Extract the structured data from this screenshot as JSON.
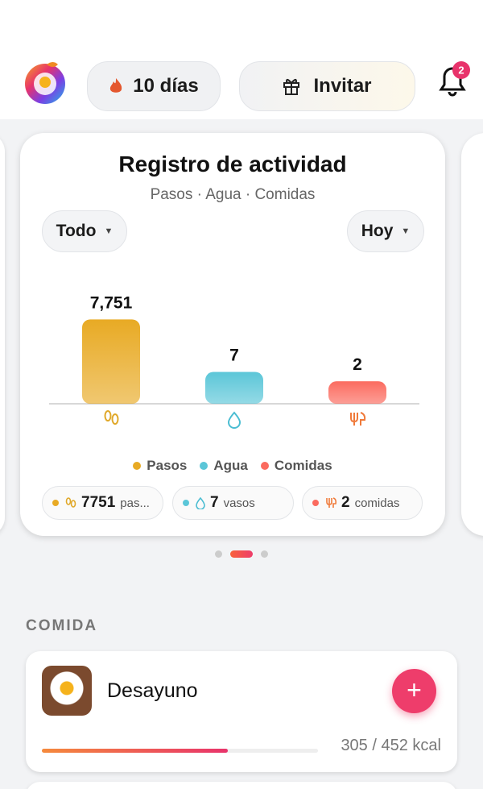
{
  "header": {
    "streak": "10 días",
    "invite": "Invitar",
    "notifications": "2"
  },
  "chart_data": {
    "type": "bar",
    "title": "Registro de actividad",
    "subtitle": "Pasos · Agua · Comidas",
    "categories": [
      "Pasos",
      "Agua",
      "Comidas"
    ],
    "values": [
      7751,
      7,
      2
    ],
    "value_labels": [
      "7,751",
      "7",
      "2"
    ],
    "colors": [
      "#e8aa24",
      "#5bc6d8",
      "#fb6b5f"
    ],
    "log_scale": true,
    "ylim": [
      0.1,
      10000
    ]
  },
  "filters": {
    "scope": "Todo",
    "period": "Hoy"
  },
  "summary": [
    {
      "value": "7751",
      "unit": "pas..."
    },
    {
      "value": "7",
      "unit": "vasos"
    },
    {
      "value": "2",
      "unit": "comidas"
    }
  ],
  "section": {
    "title": "COMIDA"
  },
  "meal": {
    "name": "Desayuno",
    "consumed": 305,
    "goal": 452,
    "unit": "kcal"
  }
}
